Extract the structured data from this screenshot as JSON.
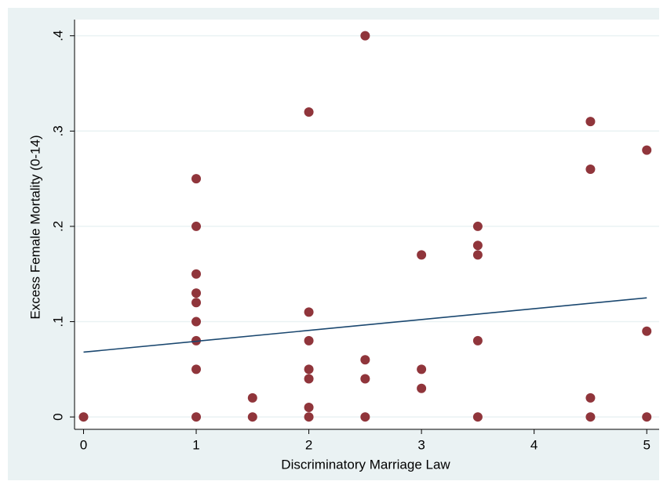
{
  "chart_data": {
    "type": "scatter",
    "x_label": "Discriminatory Marriage Law",
    "y_label": "Excess Female Mortality (0-14)",
    "series": [
      {
        "color": "#90353b",
        "x": [
          0,
          1,
          1,
          1,
          1,
          1,
          1,
          1,
          1,
          1,
          1.5,
          1.5,
          2,
          2,
          2,
          2,
          2,
          2,
          2,
          2.5,
          2.5,
          2.5,
          2.5,
          3,
          3,
          3,
          3.5,
          3.5,
          3.5,
          3.5,
          3.5,
          4.5,
          4.5,
          4.5,
          4.5,
          5,
          5,
          5
        ],
        "y": [
          0,
          0.25,
          0.2,
          0.15,
          0.13,
          0.12,
          0.1,
          0.08,
          0.05,
          0,
          0.02,
          0,
          0.32,
          0.11,
          0.08,
          0.05,
          0.04,
          0.01,
          0,
          0.4,
          0.06,
          0.04,
          0,
          0.17,
          0.05,
          0.03,
          0.2,
          0.18,
          0.17,
          0.08,
          0,
          0.31,
          0.26,
          0.02,
          0,
          0.28,
          0.09,
          0
        ]
      }
    ],
    "fit": {
      "color": "#1a476f",
      "x": [
        0,
        5
      ],
      "y": [
        0.068,
        0.125
      ]
    },
    "xlim": [
      -0.08,
      5.11
    ],
    "ylim": [
      -0.013,
      0.417
    ],
    "xticks": [
      0,
      1,
      2,
      3,
      4,
      5
    ],
    "yticks": [
      0,
      {
        "value": 0.1,
        "label": ".1"
      },
      {
        "value": 0.2,
        "label": ".2"
      },
      {
        "value": 0.3,
        "label": ".3"
      },
      {
        "value": 0.4,
        "label": ".4"
      }
    ],
    "grid": true
  }
}
